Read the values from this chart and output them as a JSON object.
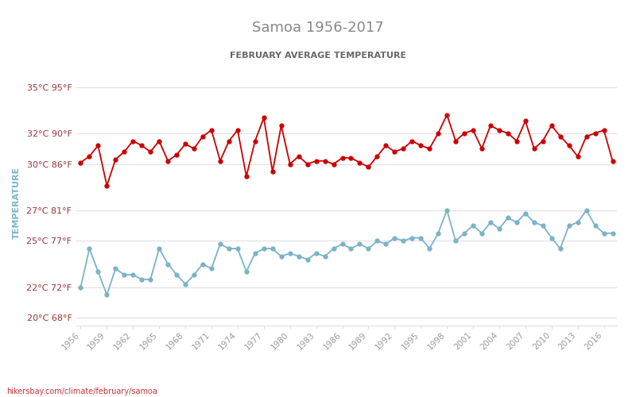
{
  "title": "Samoa 1956-2017",
  "subtitle": "FEBRUARY AVERAGE TEMPERATURE",
  "xlabel_url": "hikersbay.com/climate/february/samoa",
  "ylabel": "TEMPERATURE",
  "years": [
    1956,
    1957,
    1958,
    1959,
    1960,
    1961,
    1962,
    1963,
    1964,
    1965,
    1966,
    1967,
    1968,
    1969,
    1970,
    1971,
    1972,
    1973,
    1974,
    1975,
    1976,
    1977,
    1978,
    1979,
    1980,
    1981,
    1982,
    1983,
    1984,
    1985,
    1986,
    1987,
    1988,
    1989,
    1990,
    1991,
    1992,
    1993,
    1994,
    1995,
    1996,
    1997,
    1998,
    1999,
    2000,
    2001,
    2002,
    2003,
    2004,
    2005,
    2006,
    2007,
    2008,
    2009,
    2010,
    2011,
    2012,
    2013,
    2014,
    2015,
    2016,
    2017
  ],
  "day_temps": [
    30.1,
    30.5,
    31.2,
    28.6,
    30.3,
    30.8,
    31.5,
    31.2,
    30.8,
    31.5,
    30.2,
    30.6,
    31.3,
    31.0,
    31.8,
    32.2,
    30.2,
    31.5,
    32.2,
    29.2,
    31.5,
    33.0,
    29.5,
    32.5,
    30.0,
    30.5,
    30.0,
    30.2,
    30.2,
    30.0,
    30.4,
    30.4,
    30.1,
    29.8,
    30.5,
    31.2,
    30.8,
    31.0,
    31.5,
    31.2,
    31.0,
    32.0,
    33.2,
    31.5,
    32.0,
    32.2,
    31.0,
    32.5,
    32.2,
    32.0,
    31.5,
    32.8,
    31.0,
    31.5,
    32.5,
    31.8,
    31.2,
    30.5,
    31.8,
    32.0,
    32.2,
    30.2
  ],
  "night_temps": [
    22.0,
    24.5,
    23.0,
    21.5,
    23.2,
    22.8,
    22.8,
    22.5,
    22.5,
    24.5,
    23.5,
    22.8,
    22.2,
    22.8,
    23.5,
    23.2,
    24.8,
    24.5,
    24.5,
    23.0,
    24.2,
    24.5,
    24.5,
    24.0,
    24.2,
    24.0,
    23.8,
    24.2,
    24.0,
    24.5,
    24.8,
    24.5,
    24.8,
    24.5,
    25.0,
    24.8,
    25.2,
    25.0,
    25.2,
    25.2,
    24.5,
    25.5,
    27.0,
    25.0,
    25.5,
    26.0,
    25.5,
    26.2,
    25.8,
    26.5,
    26.2,
    26.8,
    26.2,
    26.0,
    25.2,
    24.5,
    26.0,
    26.2,
    27.0,
    26.0,
    25.5,
    25.5
  ],
  "yticks_c": [
    20,
    22,
    25,
    27,
    30,
    32,
    35
  ],
  "yticks_labels": [
    "20°C 68°F",
    "22°C 72°F",
    "25°C 77°F",
    "27°C 81°F",
    "30°C 86°F",
    "32°C 90°F",
    "35°C 95°F"
  ],
  "xticks": [
    1956,
    1959,
    1962,
    1965,
    1968,
    1971,
    1974,
    1977,
    1980,
    1983,
    1986,
    1989,
    1992,
    1995,
    1998,
    2001,
    2004,
    2007,
    2010,
    2013,
    2016
  ],
  "ylim": [
    19.5,
    35.5
  ],
  "xlim": [
    1955.5,
    2017.5
  ],
  "day_color": "#cc0000",
  "night_color": "#7ab3c8",
  "grid_color": "#e0e0e0",
  "background_color": "#ffffff",
  "title_color": "#888888",
  "subtitle_color": "#666666",
  "ylabel_color": "#7ab3c8",
  "ytick_color": "#993333",
  "xtick_color": "#999999",
  "url_color": "#cc3333",
  "marker_size": 3.5,
  "line_width": 1.3
}
